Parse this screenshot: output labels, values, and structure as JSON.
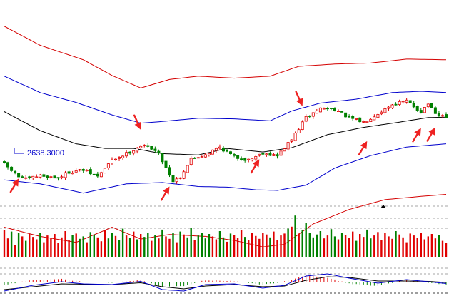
{
  "chart_data": {
    "type": "candlestick",
    "annotation": "2638.3000",
    "colors": {
      "up": "#e00000",
      "down": "#008000",
      "middle_band": "#000000",
      "inner_band": "#0000cc",
      "outer_band": "#d40000",
      "arrow": "#ee2222",
      "macd_dif": "#0000cc",
      "macd_dea": "#000000",
      "grid": "#888888"
    },
    "price_panel": {
      "ylim": [
        2560,
        3190
      ],
      "candle_count": 124,
      "close_anchors": [
        [
          0,
          2690
        ],
        [
          4,
          2652
        ],
        [
          6,
          2644
        ],
        [
          10,
          2655
        ],
        [
          15,
          2648
        ],
        [
          18,
          2666
        ],
        [
          22,
          2672
        ],
        [
          26,
          2652
        ],
        [
          30,
          2702
        ],
        [
          34,
          2722
        ],
        [
          38,
          2746
        ],
        [
          41,
          2740
        ],
        [
          43,
          2722
        ],
        [
          45,
          2680
        ],
        [
          47,
          2638
        ],
        [
          49,
          2652
        ],
        [
          52,
          2705
        ],
        [
          56,
          2720
        ],
        [
          60,
          2742
        ],
        [
          64,
          2712
        ],
        [
          68,
          2703
        ],
        [
          72,
          2725
        ],
        [
          76,
          2715
        ],
        [
          80,
          2765
        ],
        [
          84,
          2832
        ],
        [
          88,
          2860
        ],
        [
          92,
          2858
        ],
        [
          96,
          2830
        ],
        [
          100,
          2818
        ],
        [
          104,
          2845
        ],
        [
          108,
          2872
        ],
        [
          112,
          2882
        ],
        [
          116,
          2850
        ],
        [
          118,
          2875
        ],
        [
          120,
          2840
        ],
        [
          123,
          2835
        ]
      ],
      "middle_band": [
        [
          0,
          2850
        ],
        [
          10,
          2792
        ],
        [
          20,
          2752
        ],
        [
          28,
          2738
        ],
        [
          36,
          2738
        ],
        [
          44,
          2722
        ],
        [
          54,
          2718
        ],
        [
          62,
          2738
        ],
        [
          72,
          2727
        ],
        [
          80,
          2740
        ],
        [
          90,
          2780
        ],
        [
          100,
          2802
        ],
        [
          110,
          2818
        ],
        [
          118,
          2832
        ],
        [
          123,
          2833
        ]
      ],
      "upper_inner_band": [
        [
          0,
          2958
        ],
        [
          10,
          2908
        ],
        [
          20,
          2878
        ],
        [
          30,
          2840
        ],
        [
          38,
          2815
        ],
        [
          44,
          2820
        ],
        [
          54,
          2830
        ],
        [
          64,
          2828
        ],
        [
          74,
          2822
        ],
        [
          80,
          2852
        ],
        [
          88,
          2876
        ],
        [
          98,
          2888
        ],
        [
          108,
          2908
        ],
        [
          116,
          2912
        ],
        [
          123,
          2908
        ]
      ],
      "lower_inner_band": [
        [
          0,
          2642
        ],
        [
          10,
          2630
        ],
        [
          22,
          2602
        ],
        [
          34,
          2630
        ],
        [
          44,
          2634
        ],
        [
          54,
          2622
        ],
        [
          62,
          2620
        ],
        [
          70,
          2612
        ],
        [
          76,
          2610
        ],
        [
          84,
          2626
        ],
        [
          92,
          2678
        ],
        [
          102,
          2716
        ],
        [
          112,
          2742
        ],
        [
          123,
          2752
        ]
      ],
      "upper_outer_band": [
        [
          0,
          3110
        ],
        [
          10,
          3052
        ],
        [
          22,
          3008
        ],
        [
          30,
          2960
        ],
        [
          38,
          2922
        ],
        [
          46,
          2948
        ],
        [
          54,
          2958
        ],
        [
          64,
          2952
        ],
        [
          74,
          2958
        ],
        [
          82,
          2988
        ],
        [
          92,
          2995
        ],
        [
          102,
          2998
        ],
        [
          112,
          3010
        ],
        [
          123,
          3008
        ]
      ],
      "lower_outer_band": [
        [
          0,
          2498
        ],
        [
          10,
          2470
        ],
        [
          20,
          2452
        ],
        [
          30,
          2498
        ],
        [
          38,
          2462
        ],
        [
          46,
          2476
        ],
        [
          56,
          2470
        ],
        [
          64,
          2458
        ],
        [
          72,
          2438
        ],
        [
          78,
          2446
        ],
        [
          86,
          2508
        ],
        [
          96,
          2552
        ],
        [
          106,
          2582
        ],
        [
          116,
          2592
        ],
        [
          123,
          2598
        ]
      ],
      "arrows": [
        {
          "candle": 4,
          "price": 2646,
          "dir": "down"
        },
        {
          "candle": 38,
          "price": 2795,
          "dir": "up"
        },
        {
          "candle": 46,
          "price": 2622,
          "dir": "down"
        },
        {
          "candle": 71,
          "price": 2705,
          "dir": "down"
        },
        {
          "candle": 83,
          "price": 2867,
          "dir": "up"
        },
        {
          "candle": 101,
          "price": 2760,
          "dir": "down"
        },
        {
          "candle": 116,
          "price": 2800,
          "dir": "down"
        },
        {
          "candle": 120,
          "price": 2802,
          "dir": "down"
        }
      ]
    },
    "volume_panel": {
      "ylim": [
        0,
        100
      ],
      "values": [
        55,
        38,
        52,
        25,
        50,
        42,
        33,
        48,
        41,
        36,
        50,
        30,
        44,
        38,
        47,
        28,
        40,
        53,
        35,
        45,
        48,
        37,
        42,
        30,
        51,
        46,
        40,
        32,
        55,
        38,
        49,
        43,
        35,
        58,
        44,
        39,
        52,
        36,
        47,
        41,
        50,
        33,
        45,
        38,
        56,
        42,
        37,
        49,
        30,
        52,
        46,
        40,
        59,
        35,
        44,
        50,
        38,
        47,
        42,
        36,
        53,
        40,
        31,
        48,
        45,
        39,
        55,
        41,
        34,
        50,
        43,
        37,
        49,
        46,
        40,
        52,
        35,
        44,
        48,
        58,
        62,
        85,
        48,
        55,
        70,
        50,
        40,
        46,
        53,
        38,
        44,
        57,
        42,
        36,
        50,
        45,
        39,
        52,
        33,
        47,
        41,
        56,
        38,
        44,
        51,
        35,
        49,
        42,
        37,
        53,
        46,
        40,
        30,
        48,
        44,
        39,
        50,
        36,
        42,
        47,
        38,
        45,
        33,
        28
      ],
      "up_flags": "random"
    },
    "macd_panel": {
      "ylim": [
        -40,
        40
      ],
      "dif": [
        [
          0,
          -24
        ],
        [
          8,
          -8
        ],
        [
          16,
          2
        ],
        [
          22,
          -4
        ],
        [
          30,
          -6
        ],
        [
          38,
          3
        ],
        [
          44,
          -20
        ],
        [
          50,
          -24
        ],
        [
          56,
          -6
        ],
        [
          64,
          -4
        ],
        [
          72,
          -16
        ],
        [
          78,
          -8
        ],
        [
          84,
          18
        ],
        [
          90,
          24
        ],
        [
          96,
          12
        ],
        [
          104,
          -2
        ],
        [
          112,
          8
        ],
        [
          118,
          2
        ],
        [
          123,
          -3
        ]
      ],
      "dea": [
        [
          0,
          -20
        ],
        [
          8,
          -12
        ],
        [
          16,
          -4
        ],
        [
          22,
          -5
        ],
        [
          30,
          -6
        ],
        [
          38,
          -1
        ],
        [
          44,
          -12
        ],
        [
          50,
          -18
        ],
        [
          56,
          -10
        ],
        [
          64,
          -6
        ],
        [
          72,
          -12
        ],
        [
          78,
          -10
        ],
        [
          84,
          6
        ],
        [
          90,
          16
        ],
        [
          96,
          14
        ],
        [
          104,
          4
        ],
        [
          112,
          4
        ],
        [
          118,
          3
        ],
        [
          123,
          0
        ]
      ]
    }
  }
}
